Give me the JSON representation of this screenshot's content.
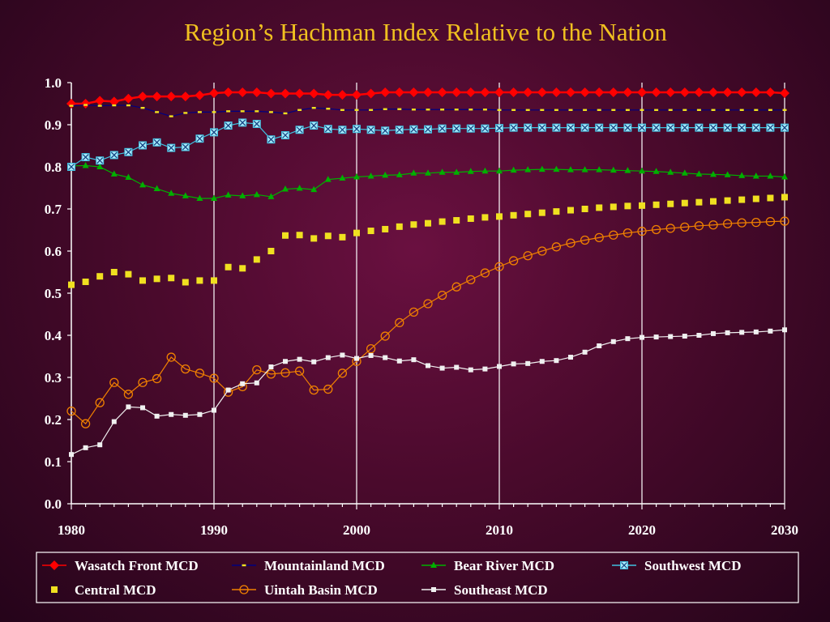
{
  "chart_data": {
    "type": "line",
    "title": "Region’s Hachman Index Relative to the Nation",
    "xlabel": "",
    "ylabel": "",
    "xlim": [
      1980,
      2030
    ],
    "ylim": [
      0.0,
      1.0
    ],
    "x_ticks": [
      "1980",
      "1990",
      "2000",
      "2010",
      "2020",
      "2030"
    ],
    "y_ticks": [
      "0.0",
      "0.1",
      "0.2",
      "0.3",
      "0.4",
      "0.5",
      "0.6",
      "0.7",
      "0.8",
      "0.9",
      "1.0"
    ],
    "grid": "vertical",
    "legend_position": "bottom",
    "x": [
      1980,
      1981,
      1982,
      1983,
      1984,
      1985,
      1986,
      1987,
      1988,
      1989,
      1990,
      1991,
      1992,
      1993,
      1994,
      1995,
      1996,
      1997,
      1998,
      1999,
      2000,
      2001,
      2002,
      2003,
      2004,
      2005,
      2006,
      2007,
      2008,
      2009,
      2010,
      2011,
      2012,
      2013,
      2014,
      2015,
      2016,
      2017,
      2018,
      2019,
      2020,
      2021,
      2022,
      2023,
      2024,
      2025,
      2026,
      2027,
      2028,
      2029,
      2030
    ],
    "series": [
      {
        "name": "Wasatch Front MCD",
        "color": "#ff0000",
        "marker": "diamond",
        "line": "solid",
        "values": [
          0.95,
          0.95,
          0.957,
          0.955,
          0.962,
          0.967,
          0.967,
          0.967,
          0.967,
          0.97,
          0.975,
          0.977,
          0.977,
          0.977,
          0.974,
          0.974,
          0.974,
          0.974,
          0.971,
          0.971,
          0.971,
          0.974,
          0.977,
          0.977,
          0.977,
          0.977,
          0.977,
          0.977,
          0.977,
          0.977,
          0.977,
          0.977,
          0.977,
          0.977,
          0.977,
          0.977,
          0.977,
          0.977,
          0.977,
          0.977,
          0.977,
          0.977,
          0.977,
          0.977,
          0.977,
          0.977,
          0.977,
          0.977,
          0.977,
          0.977,
          0.975
        ]
      },
      {
        "name": "Mountainland MCD",
        "color": "#000080",
        "marker": "dash",
        "line": "solid",
        "values": [
          0.945,
          0.947,
          0.945,
          0.946,
          0.946,
          0.94,
          0.93,
          0.92,
          0.928,
          0.93,
          0.93,
          0.932,
          0.932,
          0.932,
          0.93,
          0.927,
          0.935,
          0.94,
          0.938,
          0.935,
          0.935,
          0.935,
          0.937,
          0.937,
          0.936,
          0.936,
          0.936,
          0.936,
          0.936,
          0.936,
          0.935,
          0.935,
          0.935,
          0.935,
          0.935,
          0.935,
          0.935,
          0.935,
          0.935,
          0.935,
          0.935,
          0.935,
          0.935,
          0.935,
          0.935,
          0.935,
          0.935,
          0.935,
          0.935,
          0.935,
          0.935
        ]
      },
      {
        "name": "Bear River MCD",
        "color": "#00b000",
        "marker": "triangle",
        "line": "solid",
        "values": [
          0.802,
          0.803,
          0.8,
          0.783,
          0.775,
          0.757,
          0.748,
          0.737,
          0.731,
          0.725,
          0.725,
          0.733,
          0.731,
          0.734,
          0.729,
          0.747,
          0.749,
          0.746,
          0.77,
          0.773,
          0.776,
          0.778,
          0.78,
          0.781,
          0.785,
          0.785,
          0.787,
          0.787,
          0.789,
          0.79,
          0.79,
          0.792,
          0.793,
          0.794,
          0.794,
          0.793,
          0.793,
          0.793,
          0.792,
          0.791,
          0.79,
          0.789,
          0.787,
          0.785,
          0.783,
          0.782,
          0.781,
          0.779,
          0.778,
          0.778,
          0.776
        ]
      },
      {
        "name": "Southwest MCD",
        "color": "#40c0e0",
        "marker": "xsquare",
        "line": "solid",
        "values": [
          0.8,
          0.823,
          0.815,
          0.828,
          0.835,
          0.851,
          0.858,
          0.845,
          0.847,
          0.867,
          0.882,
          0.898,
          0.905,
          0.902,
          0.865,
          0.875,
          0.888,
          0.898,
          0.89,
          0.888,
          0.89,
          0.888,
          0.886,
          0.888,
          0.889,
          0.889,
          0.891,
          0.891,
          0.891,
          0.891,
          0.892,
          0.893,
          0.893,
          0.893,
          0.893,
          0.893,
          0.893,
          0.893,
          0.893,
          0.893,
          0.893,
          0.893,
          0.893,
          0.893,
          0.893,
          0.893,
          0.893,
          0.893,
          0.893,
          0.893,
          0.893
        ]
      },
      {
        "name": "Central MCD",
        "color": "#f0e020",
        "marker": "square",
        "line": "none",
        "values": [
          0.52,
          0.527,
          0.54,
          0.55,
          0.545,
          0.53,
          0.534,
          0.536,
          0.526,
          0.53,
          0.53,
          0.562,
          0.559,
          0.58,
          0.6,
          0.637,
          0.638,
          0.63,
          0.636,
          0.633,
          0.643,
          0.648,
          0.652,
          0.658,
          0.663,
          0.666,
          0.67,
          0.673,
          0.677,
          0.68,
          0.682,
          0.685,
          0.688,
          0.691,
          0.694,
          0.697,
          0.7,
          0.703,
          0.705,
          0.707,
          0.708,
          0.71,
          0.712,
          0.714,
          0.716,
          0.718,
          0.72,
          0.722,
          0.724,
          0.726,
          0.728
        ]
      },
      {
        "name": "Uintah Basin MCD",
        "color": "#f08000",
        "marker": "circle",
        "line": "solid",
        "values": [
          0.22,
          0.19,
          0.24,
          0.288,
          0.26,
          0.288,
          0.297,
          0.348,
          0.32,
          0.31,
          0.298,
          0.265,
          0.278,
          0.318,
          0.308,
          0.311,
          0.315,
          0.27,
          0.272,
          0.31,
          0.338,
          0.368,
          0.398,
          0.43,
          0.455,
          0.475,
          0.495,
          0.515,
          0.532,
          0.548,
          0.563,
          0.577,
          0.589,
          0.6,
          0.61,
          0.619,
          0.626,
          0.632,
          0.638,
          0.643,
          0.647,
          0.651,
          0.654,
          0.657,
          0.66,
          0.662,
          0.665,
          0.667,
          0.668,
          0.67,
          0.671
        ]
      },
      {
        "name": "Southeast MCD",
        "color": "#f0f0f0",
        "marker": "smallsquare",
        "line": "solid",
        "values": [
          0.117,
          0.133,
          0.14,
          0.195,
          0.23,
          0.228,
          0.208,
          0.212,
          0.21,
          0.212,
          0.222,
          0.27,
          0.285,
          0.287,
          0.325,
          0.338,
          0.343,
          0.337,
          0.347,
          0.353,
          0.345,
          0.352,
          0.347,
          0.339,
          0.342,
          0.328,
          0.322,
          0.324,
          0.318,
          0.32,
          0.326,
          0.332,
          0.333,
          0.338,
          0.34,
          0.348,
          0.36,
          0.375,
          0.385,
          0.392,
          0.395,
          0.396,
          0.397,
          0.398,
          0.4,
          0.404,
          0.406,
          0.407,
          0.408,
          0.41,
          0.413
        ]
      }
    ]
  }
}
